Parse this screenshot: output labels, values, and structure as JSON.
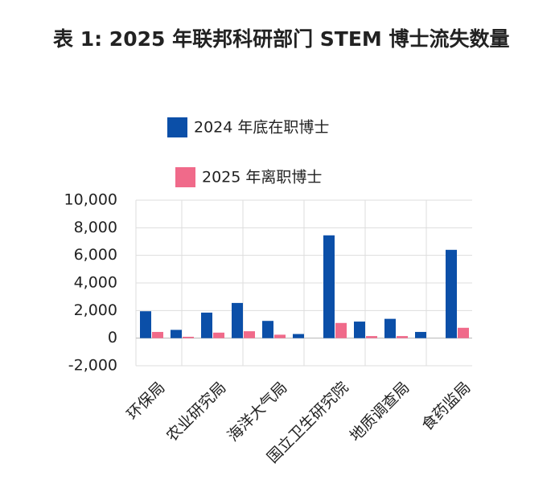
{
  "chart_data": {
    "type": "bar",
    "title": "表 1:  2025 年联邦科研部门 STEM 博士流失数量",
    "categories": [
      "环保局",
      null,
      "农业研究局",
      null,
      "海洋大气局",
      null,
      "国立卫生研究院",
      null,
      "地质调查局",
      null,
      "食药监局"
    ],
    "series": [
      {
        "name": "2024 年底在职博士",
        "color": "#0b4fa8",
        "values": [
          1950,
          600,
          1850,
          2550,
          1250,
          300,
          7450,
          1200,
          1400,
          450,
          6400
        ]
      },
      {
        "name": "2025 年离职博士",
        "color": "#f06a8a",
        "values": [
          450,
          100,
          400,
          500,
          250,
          0,
          1100,
          150,
          150,
          0,
          750
        ]
      }
    ],
    "ylim": [
      -2000,
      10000
    ],
    "yticks": [
      {
        "value": -2000,
        "label": "-2,000"
      },
      0,
      {
        "value": 2000,
        "label": "2,000"
      },
      {
        "value": 4000,
        "label": "4,000"
      },
      {
        "value": 6000,
        "label": "6,000"
      },
      {
        "value": 8000,
        "label": "8,000"
      },
      {
        "value": 10000,
        "label": "10,000"
      }
    ],
    "grid": true
  }
}
